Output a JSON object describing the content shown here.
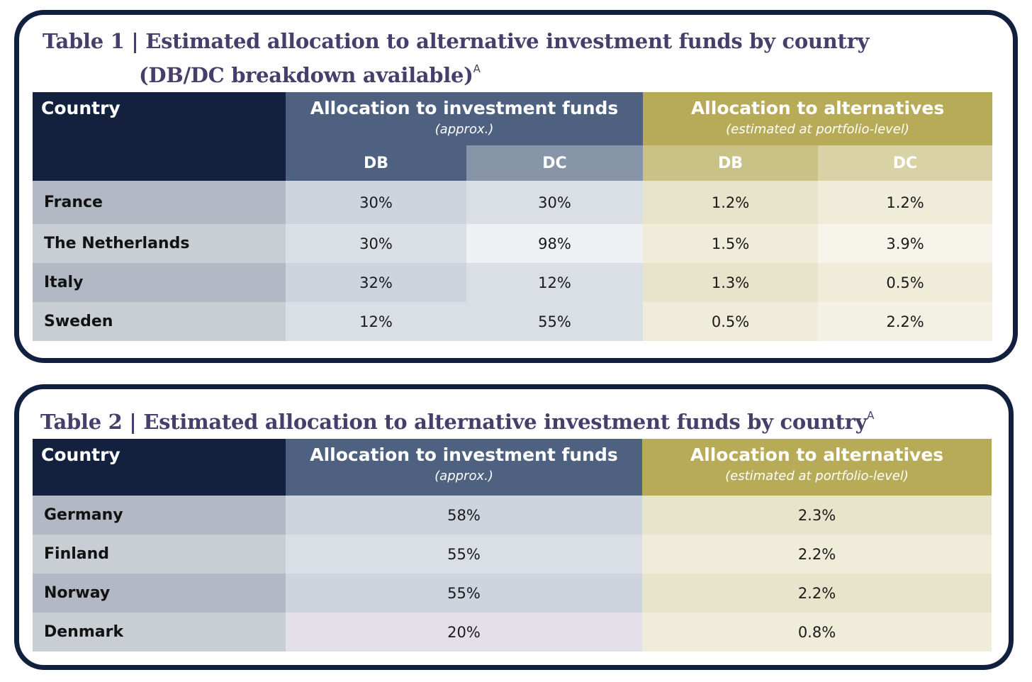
{
  "table1": {
    "title_line1": "Table 1 | Estimated allocation to alternative investment funds by country",
    "title_line2": "(DB/DC breakdown available)",
    "title_sup": "A",
    "header": {
      "country": "Country",
      "funds": "Allocation to investment funds",
      "funds_sub": "(approx.)",
      "alts": "Allocation to alternatives",
      "alts_sub": "(estimated at portfolio-level)",
      "db": "DB",
      "dc": "DC"
    },
    "rows": [
      {
        "country": "France",
        "funds_db": "30%",
        "funds_dc": "30%",
        "alts_db": "1.2%",
        "alts_dc": "1.2%"
      },
      {
        "country": "The Netherlands",
        "funds_db": "30%",
        "funds_dc": "98%",
        "alts_db": "1.5%",
        "alts_dc": "3.9%"
      },
      {
        "country": "Italy",
        "funds_db": "32%",
        "funds_dc": "12%",
        "alts_db": "1.3%",
        "alts_dc": "0.5%"
      },
      {
        "country": "Sweden",
        "funds_db": "12%",
        "funds_dc": "55%",
        "alts_db": "0.5%",
        "alts_dc": "2.2%"
      }
    ]
  },
  "table2": {
    "title": "Table 2 | Estimated allocation to alternative investment funds by country",
    "title_sup": "A",
    "header": {
      "country": "Country",
      "funds": "Allocation to investment funds",
      "funds_sub": "(approx.)",
      "alts": "Allocation to alternatives",
      "alts_sub": "(estimated at portfolio-level)"
    },
    "rows": [
      {
        "country": "Germany",
        "funds": "58%",
        "alts": "2.3%"
      },
      {
        "country": "Finland",
        "funds": "55%",
        "alts": "2.2%"
      },
      {
        "country": "Norway",
        "funds": "55%",
        "alts": "2.2%"
      },
      {
        "country": "Denmark",
        "funds": "20%",
        "alts": "0.8%"
      }
    ]
  },
  "colors": {
    "navy": "#13213f",
    "slate": "#4e6180",
    "olive": "#b7ab57",
    "title": "#473e6b"
  }
}
